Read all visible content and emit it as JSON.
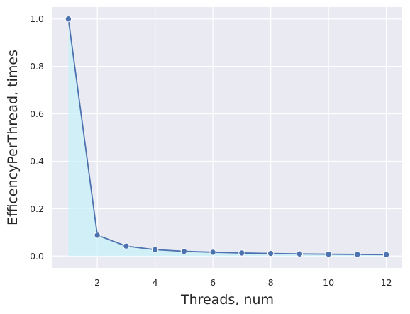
{
  "chart_data": {
    "type": "line",
    "xlabel": "Threads, num",
    "ylabel": "EfficencyPerThread, times",
    "x": [
      1,
      2,
      3,
      4,
      5,
      6,
      7,
      8,
      9,
      10,
      11,
      12
    ],
    "series": [
      {
        "values": [
          1.0,
          0.088,
          0.042,
          0.027,
          0.02,
          0.016,
          0.013,
          0.011,
          0.009,
          0.008,
          0.007,
          0.006
        ]
      }
    ],
    "x_ticks": [
      2,
      4,
      6,
      8,
      10,
      12
    ],
    "x_tick_labels": [
      "2",
      "4",
      "6",
      "8",
      "10",
      "12"
    ],
    "y_ticks": [
      0.0,
      0.2,
      0.4,
      0.6,
      0.8,
      1.0
    ],
    "y_tick_labels": [
      "0.0",
      "0.2",
      "0.4",
      "0.6",
      "0.8",
      "1.0"
    ],
    "xlim": [
      0.45,
      12.55
    ],
    "ylim": [
      -0.05,
      1.05
    ],
    "grid": true,
    "colors": {
      "background": "#eaeaf2",
      "grid": "#ffffff",
      "line": "#4c72b0",
      "fill": "#c8f0f8"
    }
  }
}
